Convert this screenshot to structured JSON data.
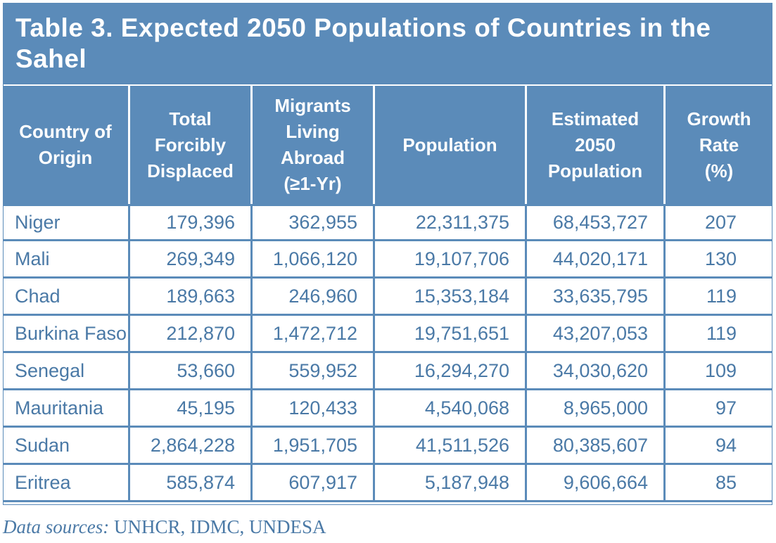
{
  "title": "Table 3. Expected 2050 Populations of Countries in the Sahel",
  "table": {
    "headers": [
      [
        "Country of",
        "Origin"
      ],
      [
        "Total",
        "Forcibly",
        "Displaced"
      ],
      [
        "Migrants",
        "Living",
        "Abroad",
        "(≥1-Yr)"
      ],
      [
        "Population"
      ],
      [
        "Estimated",
        "2050",
        "Population"
      ],
      [
        "Growth",
        "Rate",
        "(%)"
      ]
    ],
    "rows": [
      [
        "Niger",
        "179,396",
        "362,955",
        "22,311,375",
        "68,453,727",
        "207"
      ],
      [
        "Mali",
        "269,349",
        "1,066,120",
        "19,107,706",
        "44,020,171",
        "130"
      ],
      [
        "Chad",
        "189,663",
        "246,960",
        "15,353,184",
        "33,635,795",
        "119"
      ],
      [
        "Burkina Faso",
        "212,870",
        "1,472,712",
        "19,751,651",
        "43,207,053",
        "119"
      ],
      [
        "Senegal",
        "53,660",
        "559,952",
        "16,294,270",
        "34,030,620",
        "109"
      ],
      [
        "Mauritania",
        "45,195",
        "120,433",
        "4,540,068",
        "8,965,000",
        "97"
      ],
      [
        "Sudan",
        "2,864,228",
        "1,951,705",
        "41,511,526",
        "80,385,607",
        "94"
      ],
      [
        "Eritrea",
        "585,874",
        "607,917",
        "5,187,948",
        "9,606,664",
        "85"
      ]
    ]
  },
  "source": {
    "label": "Data sources:",
    "text": "UNHCR, IDMC, UNDESA"
  },
  "colors": {
    "header_bg": "#5b8bb9",
    "header_text": "#ffffff",
    "cell_text": "#4a79a6",
    "border": "#5b8bb9"
  }
}
